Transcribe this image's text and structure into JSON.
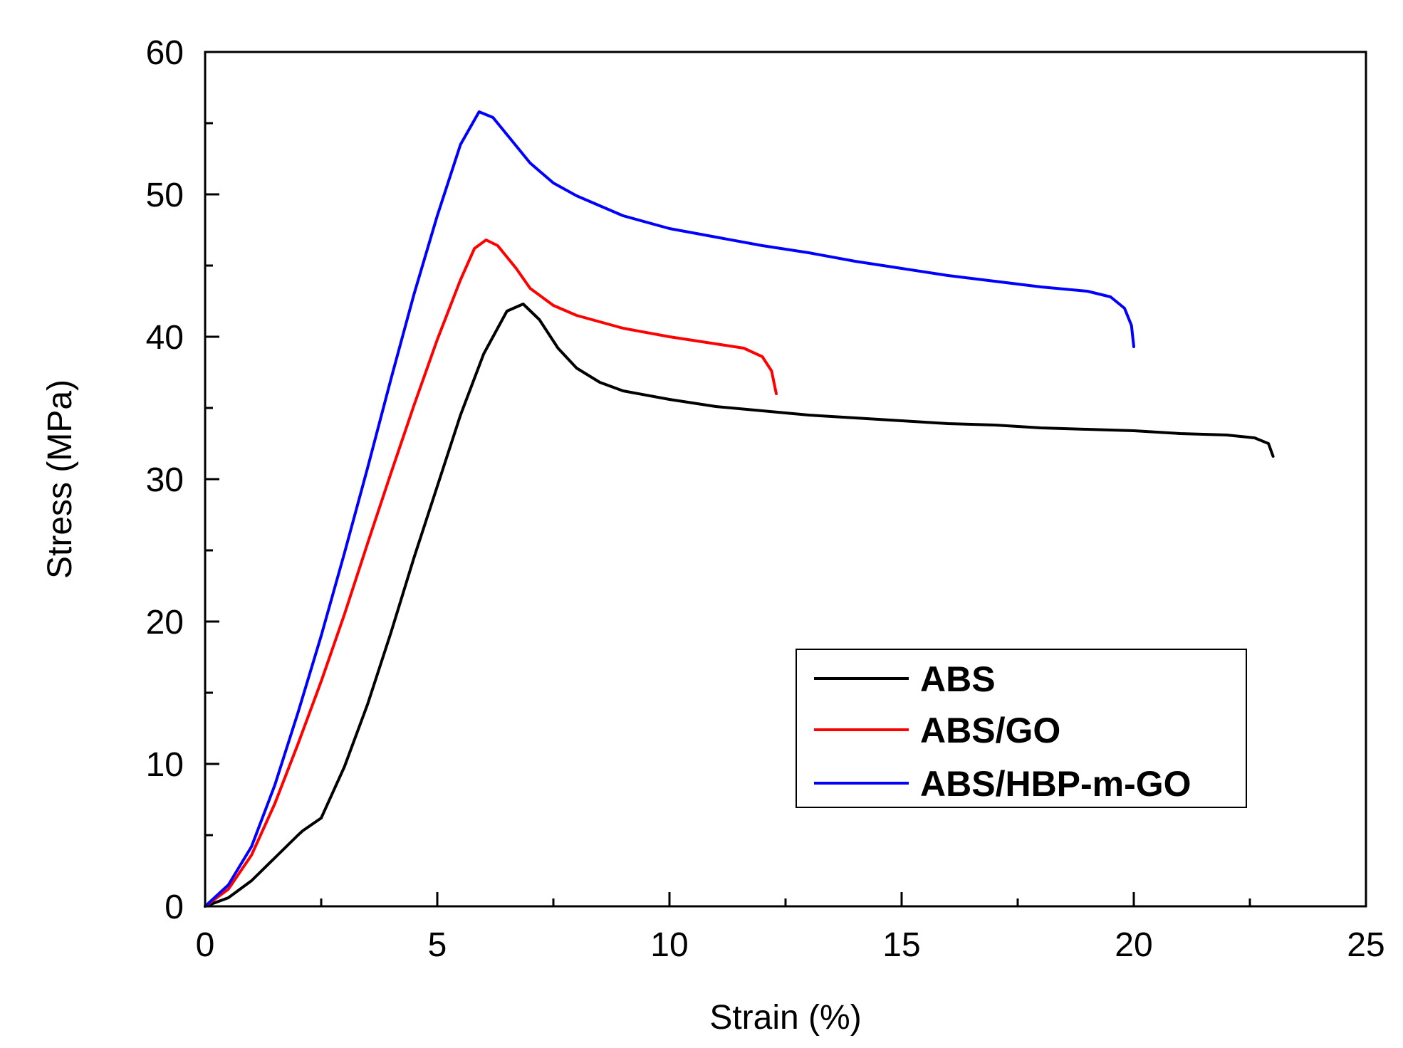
{
  "chart_data": {
    "type": "line",
    "title": "",
    "xlabel": "Strain (%)",
    "ylabel": "Stress (MPa)",
    "xlim": [
      0,
      25
    ],
    "ylim": [
      0,
      60
    ],
    "xticks": [
      0,
      5,
      10,
      15,
      20,
      25
    ],
    "yticks": [
      0,
      10,
      20,
      30,
      40,
      50,
      60
    ],
    "xtick_labels": [
      "0",
      "5",
      "10",
      "15",
      "20",
      "25"
    ],
    "ytick_labels": [
      "0",
      "10",
      "20",
      "30",
      "40",
      "50",
      "60"
    ],
    "grid": false,
    "legend_position": "bottom-right",
    "series": [
      {
        "name": "ABS",
        "color": "#000000",
        "points": [
          [
            0,
            0
          ],
          [
            0.5,
            0.6
          ],
          [
            1,
            1.8
          ],
          [
            1.5,
            3.4
          ],
          [
            2,
            5
          ],
          [
            2.1,
            5.3
          ],
          [
            2.5,
            6.2
          ],
          [
            3,
            9.8
          ],
          [
            3.5,
            14.2
          ],
          [
            4,
            19.2
          ],
          [
            4.5,
            24.5
          ],
          [
            5,
            29.5
          ],
          [
            5.5,
            34.5
          ],
          [
            6,
            38.8
          ],
          [
            6.5,
            41.8
          ],
          [
            6.85,
            42.3
          ],
          [
            7.2,
            41.2
          ],
          [
            7.6,
            39.2
          ],
          [
            8,
            37.8
          ],
          [
            8.5,
            36.8
          ],
          [
            9,
            36.2
          ],
          [
            10,
            35.6
          ],
          [
            11,
            35.1
          ],
          [
            12,
            34.8
          ],
          [
            13,
            34.5
          ],
          [
            14,
            34.3
          ],
          [
            15,
            34.1
          ],
          [
            16,
            33.9
          ],
          [
            17,
            33.8
          ],
          [
            18,
            33.6
          ],
          [
            19,
            33.5
          ],
          [
            20,
            33.4
          ],
          [
            21,
            33.2
          ],
          [
            22,
            33.1
          ],
          [
            22.6,
            32.9
          ],
          [
            22.9,
            32.5
          ],
          [
            23,
            31.6
          ]
        ]
      },
      {
        "name": "ABS/GO",
        "color": "#ff0000",
        "points": [
          [
            0,
            0
          ],
          [
            0.5,
            1.2
          ],
          [
            1,
            3.6
          ],
          [
            1.5,
            7.2
          ],
          [
            2,
            11.4
          ],
          [
            2.5,
            15.8
          ],
          [
            3,
            20.5
          ],
          [
            3.5,
            25.5
          ],
          [
            4,
            30.4
          ],
          [
            4.5,
            35.2
          ],
          [
            5,
            39.8
          ],
          [
            5.5,
            44
          ],
          [
            5.8,
            46.2
          ],
          [
            6.05,
            46.8
          ],
          [
            6.3,
            46.4
          ],
          [
            6.7,
            44.8
          ],
          [
            7,
            43.4
          ],
          [
            7.5,
            42.2
          ],
          [
            8,
            41.5
          ],
          [
            9,
            40.6
          ],
          [
            10,
            40
          ],
          [
            11,
            39.5
          ],
          [
            11.6,
            39.2
          ],
          [
            12,
            38.6
          ],
          [
            12.2,
            37.6
          ],
          [
            12.3,
            36
          ]
        ]
      },
      {
        "name": "ABS/HBP-m-GO",
        "color": "#0000ff",
        "points": [
          [
            0,
            0
          ],
          [
            0.5,
            1.5
          ],
          [
            1,
            4.2
          ],
          [
            1.5,
            8.5
          ],
          [
            2,
            13.6
          ],
          [
            2.5,
            19
          ],
          [
            3,
            24.8
          ],
          [
            3.5,
            30.8
          ],
          [
            4,
            37
          ],
          [
            4.5,
            43
          ],
          [
            5,
            48.5
          ],
          [
            5.5,
            53.5
          ],
          [
            5.9,
            55.8
          ],
          [
            6.2,
            55.4
          ],
          [
            6.6,
            53.8
          ],
          [
            7,
            52.2
          ],
          [
            7.5,
            50.8
          ],
          [
            8,
            49.9
          ],
          [
            9,
            48.5
          ],
          [
            10,
            47.6
          ],
          [
            11,
            47
          ],
          [
            12,
            46.4
          ],
          [
            13,
            45.9
          ],
          [
            14,
            45.3
          ],
          [
            15,
            44.8
          ],
          [
            16,
            44.3
          ],
          [
            17,
            43.9
          ],
          [
            18,
            43.5
          ],
          [
            19,
            43.2
          ],
          [
            19.5,
            42.8
          ],
          [
            19.8,
            42
          ],
          [
            19.95,
            40.8
          ],
          [
            20,
            39.3
          ]
        ]
      }
    ]
  }
}
